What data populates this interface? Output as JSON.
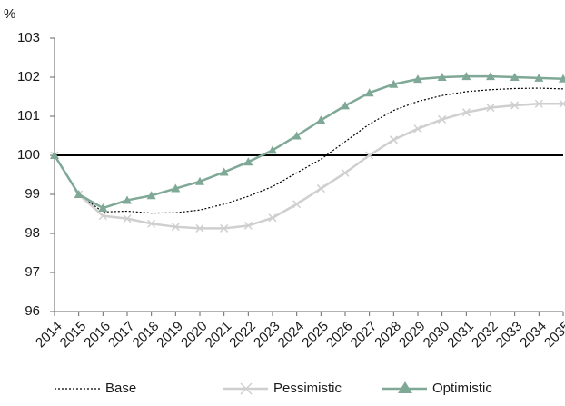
{
  "chart_data": {
    "type": "line",
    "y_label": "%",
    "categories": [
      "2014",
      "2015",
      "2016",
      "2017",
      "2018",
      "2019",
      "2020",
      "2021",
      "2022",
      "2023",
      "2024",
      "2025",
      "2026",
      "2027",
      "2028",
      "2029",
      "2030",
      "2031",
      "2032",
      "2033",
      "2034",
      "2035"
    ],
    "series": [
      {
        "name": "Base",
        "color": "#000000",
        "style": "dotted",
        "marker": "none",
        "values": [
          100,
          99.0,
          98.55,
          98.57,
          98.52,
          98.53,
          98.6,
          98.75,
          98.95,
          99.2,
          99.55,
          99.9,
          100.35,
          100.8,
          101.15,
          101.38,
          101.53,
          101.63,
          101.68,
          101.71,
          101.72,
          101.7
        ]
      },
      {
        "name": "Pessimistic",
        "color": "#cfcfcf",
        "style": "solid",
        "marker": "x",
        "values": [
          100,
          99.0,
          98.45,
          98.38,
          98.25,
          98.17,
          98.13,
          98.13,
          98.2,
          98.4,
          98.75,
          99.15,
          99.55,
          100.0,
          100.4,
          100.68,
          100.92,
          101.1,
          101.22,
          101.28,
          101.32,
          101.32
        ]
      },
      {
        "name": "Optimistic",
        "color": "#7fa897",
        "style": "solid",
        "marker": "triangle",
        "values": [
          100,
          99.0,
          98.65,
          98.85,
          98.97,
          99.15,
          99.33,
          99.57,
          99.83,
          100.13,
          100.5,
          100.9,
          101.27,
          101.6,
          101.82,
          101.95,
          102.0,
          102.02,
          102.02,
          102.0,
          101.98,
          101.96
        ]
      }
    ],
    "ylim": [
      96,
      103
    ],
    "yticks": [
      96,
      97,
      98,
      99,
      100,
      101,
      102,
      103
    ],
    "reference_line": 100,
    "legend": "bottom",
    "grid": false
  }
}
